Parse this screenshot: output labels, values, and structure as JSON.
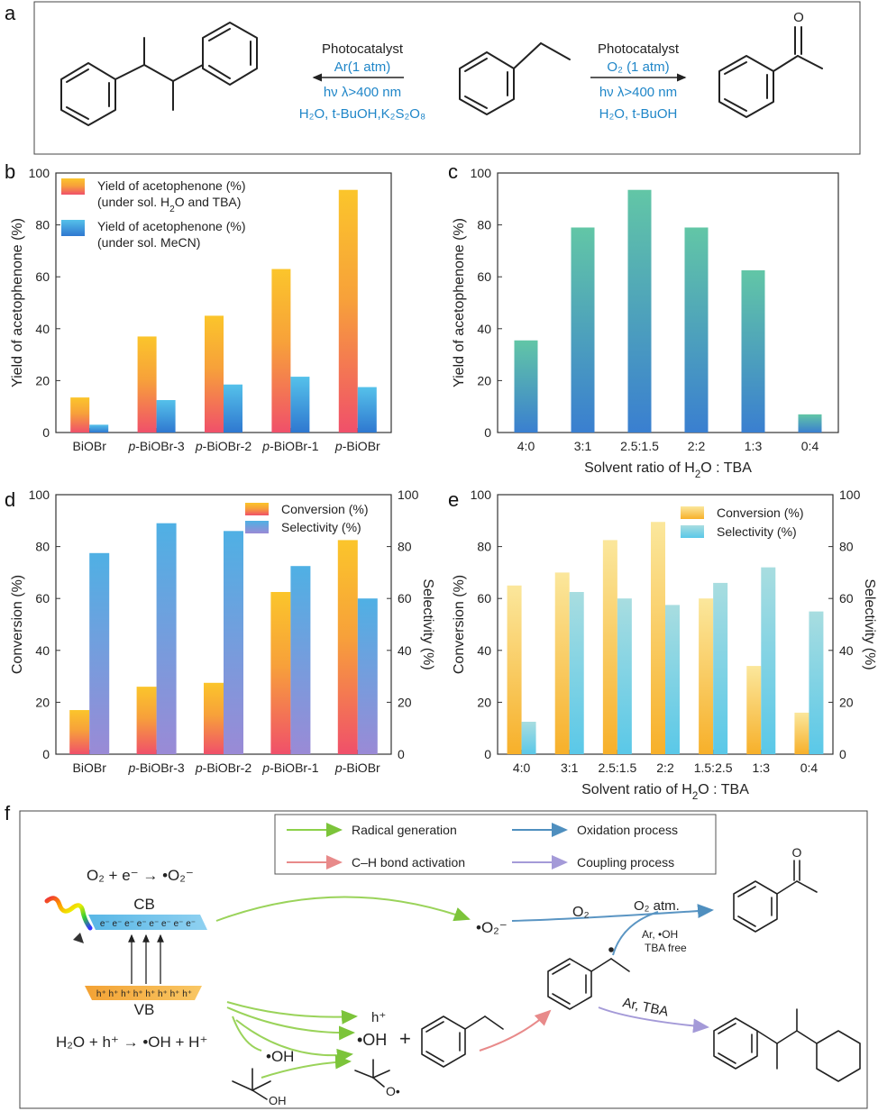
{
  "panel_labels": {
    "a": "a",
    "b": "b",
    "c": "c",
    "d": "d",
    "e": "e",
    "f": "f"
  },
  "scheme_a": {
    "left_reagent": "Photocatalyst",
    "left_gas": "Ar(1 atm)",
    "left_light": "hν λ>400 nm",
    "left_solvent": "H₂O, t-BuOH,K₂S₂O₈",
    "right_reagent": "Photocatalyst",
    "right_gas": "O₂ (1 atm)",
    "right_light": "hν λ>400 nm",
    "right_solvent": "H₂O, t-BuOH"
  },
  "chart_data": [
    {
      "panel": "b",
      "type": "bar",
      "ylabel": "Yield of acetophenone (%)",
      "ylim": [
        0,
        100
      ],
      "yticks": [
        0,
        20,
        40,
        60,
        80,
        100
      ],
      "categories": [
        "BiOBr",
        "p-BiOBr-3",
        "p-BiOBr-2",
        "p-BiOBr-1",
        "p-BiOBr"
      ],
      "series": [
        {
          "name": "Yield of acetophenone (%) (under sol. H₂O and TBA)",
          "values": [
            13.5,
            37,
            45,
            63,
            93.5
          ],
          "color": "#f6a623"
        },
        {
          "name": "Yield of acetophenone (%) (under sol. MeCN)",
          "values": [
            3,
            12.5,
            18.5,
            21.5,
            17.5
          ],
          "color": "#3aa0dc"
        }
      ],
      "legend": [
        "Yield of acetophenone (%)",
        "(under sol. H₂O and TBA)",
        "Yield of acetophenone (%)",
        "(under sol. MeCN)"
      ],
      "legend_position": "top-left"
    },
    {
      "panel": "c",
      "type": "bar",
      "xlabel": "Solvent ratio of H₂O : TBA",
      "ylabel": "Yield of acetophenone (%)",
      "ylim": [
        0,
        100
      ],
      "yticks": [
        0,
        20,
        40,
        60,
        80,
        100
      ],
      "categories": [
        "4:0",
        "3:1",
        "2.5:1.5",
        "2:2",
        "1:3",
        "0:4"
      ],
      "values": [
        35.5,
        79,
        93.5,
        79,
        62.5,
        7
      ],
      "color": "#4cb3b0"
    },
    {
      "panel": "d",
      "type": "bar",
      "ylabel": "Conversion (%)",
      "y2label": "Selectivity (%)",
      "ylim": [
        0,
        100
      ],
      "y2lim": [
        0,
        100
      ],
      "yticks": [
        0,
        20,
        40,
        60,
        80,
        100
      ],
      "categories": [
        "BiOBr",
        "p-BiOBr-3",
        "p-BiOBr-2",
        "p-BiOBr-1",
        "p-BiOBr"
      ],
      "series": [
        {
          "name": "Conversion (%)",
          "values": [
            17,
            26,
            27.5,
            62.5,
            82.5
          ],
          "color": "#f7a13a"
        },
        {
          "name": "Selectivity (%)",
          "values": [
            77.5,
            89,
            86,
            72.5,
            60
          ],
          "color": "#5b9bd8"
        }
      ],
      "legend_position": "top-right"
    },
    {
      "panel": "e",
      "type": "bar",
      "xlabel": "Solvent ratio of H₂O : TBA",
      "ylabel": "Conversion (%)",
      "y2label": "Selectivity (%)",
      "ylim": [
        0,
        100
      ],
      "y2lim": [
        0,
        100
      ],
      "yticks": [
        0,
        20,
        40,
        60,
        80,
        100
      ],
      "categories": [
        "4:0",
        "3:1",
        "2.5:1.5",
        "2:2",
        "1.5:2.5",
        "1:3",
        "0:4"
      ],
      "series": [
        {
          "name": "Conversion (%)",
          "values": [
            65,
            70,
            82.5,
            89.5,
            60,
            34,
            16
          ],
          "color": "#f9c23c"
        },
        {
          "name": "Selectivity (%)",
          "values": [
            12.5,
            62.5,
            60,
            57.5,
            66,
            72,
            55
          ],
          "color": "#8fd3e0"
        }
      ],
      "legend_position": "top-right"
    }
  ],
  "scheme_f": {
    "legend": {
      "radical": "Radical generation",
      "oxidation": "Oxidation process",
      "ch": "C–H bond activation",
      "coupling": "Coupling process"
    },
    "eq_top": "O₂ + e⁻ → •O₂⁻",
    "eq_bottom": "H₂O + h⁺ → •OH + H⁺",
    "cb": "CB",
    "vb": "VB",
    "electrons": "e⁻ e⁻ e⁻ e⁻ e⁻ e⁻ e⁻ e⁻",
    "holes": "h⁺ h⁺ h⁺ h⁺ h⁺ h⁺ h⁺ h⁺",
    "superoxide": "•O₂⁻",
    "o2": "O₂",
    "o2atm": "O₂ atm.",
    "ar_oh": "Ar, •OH",
    "tba_free": "TBA free",
    "ar_tba": "Ar, TBA",
    "hplus": "h⁺",
    "oh_mid": "•OH",
    "oh_left": "•OH",
    "plus": "+",
    "oh_sub": "OH",
    "o_rad": "O•",
    "ketone_o": "O"
  }
}
